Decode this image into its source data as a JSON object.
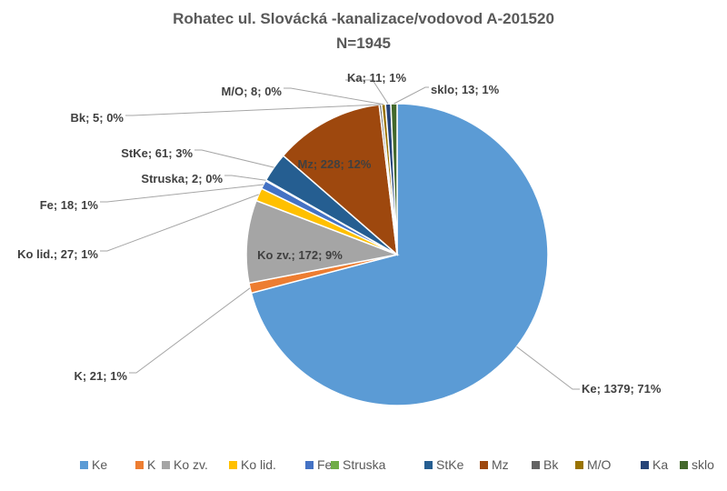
{
  "chart_data": {
    "type": "pie",
    "title": "Rohatec ul. Slovácká -kanalizace/vodovod A-201520",
    "subtitle": "N=1945",
    "legend_position": "bottom",
    "slices": [
      {
        "name": "Ke",
        "value": 1379,
        "percent": "71%",
        "color": "#5B9BD5",
        "label": "Ke; 1379; 71%"
      },
      {
        "name": "K",
        "value": 21,
        "percent": "1%",
        "color": "#ED7D31",
        "label": "K; 21; 1%"
      },
      {
        "name": "Ko zv.",
        "value": 172,
        "percent": "9%",
        "color": "#A5A5A5",
        "label": "Ko zv.; 172; 9%"
      },
      {
        "name": "Ko lid.",
        "value": 27,
        "percent": "1%",
        "color": "#FFC000",
        "label": "Ko lid.; 27; 1%"
      },
      {
        "name": "Fe",
        "value": 18,
        "percent": "1%",
        "color": "#4472C4",
        "label": "Fe; 18; 1%"
      },
      {
        "name": "Struska",
        "value": 2,
        "percent": "0%",
        "color": "#70AD47",
        "label": "Struska; 2; 0%"
      },
      {
        "name": "StKe",
        "value": 61,
        "percent": "3%",
        "color": "#255E91",
        "label": "StKe; 61; 3%"
      },
      {
        "name": "Mz",
        "value": 228,
        "percent": "12%",
        "color": "#9E480E",
        "label": "Mz; 228; 12%"
      },
      {
        "name": "Bk",
        "value": 5,
        "percent": "0%",
        "color": "#636363",
        "label": "Bk; 5; 0%"
      },
      {
        "name": "M/O",
        "value": 8,
        "percent": "0%",
        "color": "#997300",
        "label": "M/O; 8; 0%"
      },
      {
        "name": "Ka",
        "value": 11,
        "percent": "1%",
        "color": "#264478",
        "label": "Ka; 11; 1%"
      },
      {
        "name": "sklo",
        "value": 13,
        "percent": "1%",
        "color": "#43682B",
        "label": "sklo; 13; 1%"
      }
    ]
  }
}
